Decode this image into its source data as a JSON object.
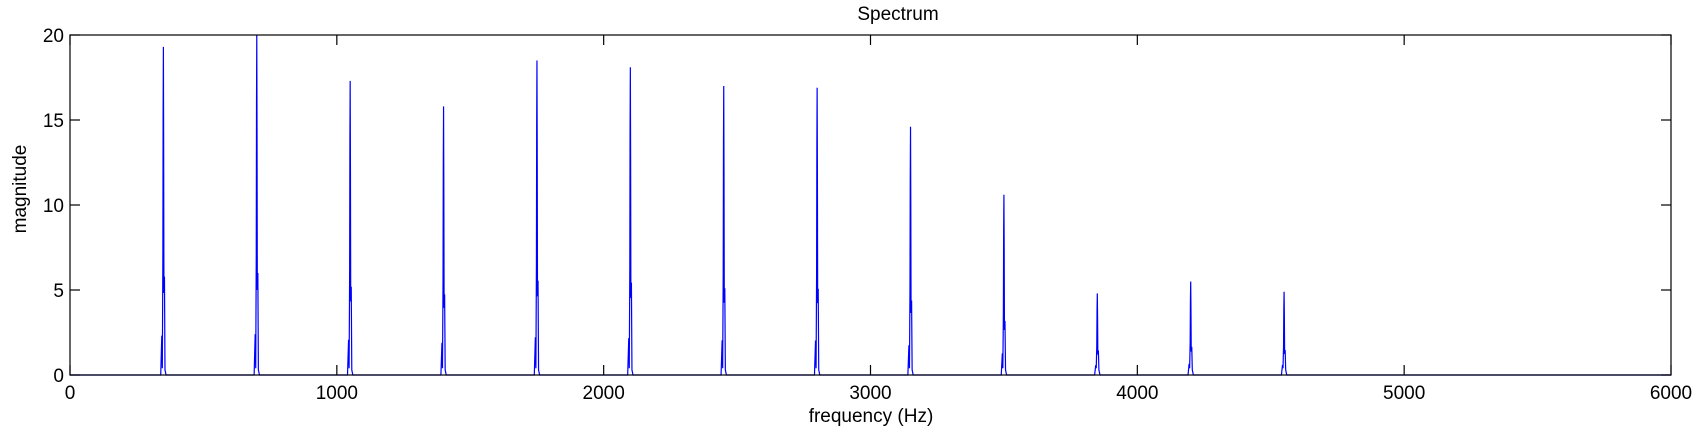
{
  "chart_data": {
    "type": "line",
    "title": "Spectrum",
    "xlabel": "frequency (Hz)",
    "ylabel": "magnitude",
    "xlim": [
      0,
      6000
    ],
    "ylim": [
      0,
      20
    ],
    "xticks": [
      0,
      1000,
      2000,
      3000,
      4000,
      5000,
      6000
    ],
    "yticks": [
      0,
      5,
      10,
      15,
      20
    ],
    "grid": false,
    "line_color": "#0000ff",
    "series": [
      {
        "peaks": [
          {
            "x": 350,
            "y": 19.3
          },
          {
            "x": 700,
            "y": 20.0
          },
          {
            "x": 1050,
            "y": 17.3
          },
          {
            "x": 1400,
            "y": 15.8
          },
          {
            "x": 1750,
            "y": 18.5
          },
          {
            "x": 2100,
            "y": 18.1
          },
          {
            "x": 2450,
            "y": 17.0
          },
          {
            "x": 2800,
            "y": 16.9
          },
          {
            "x": 3150,
            "y": 14.6
          },
          {
            "x": 3500,
            "y": 10.6
          },
          {
            "x": 3850,
            "y": 4.8
          },
          {
            "x": 4200,
            "y": 5.5
          },
          {
            "x": 4550,
            "y": 4.9
          }
        ]
      }
    ]
  }
}
